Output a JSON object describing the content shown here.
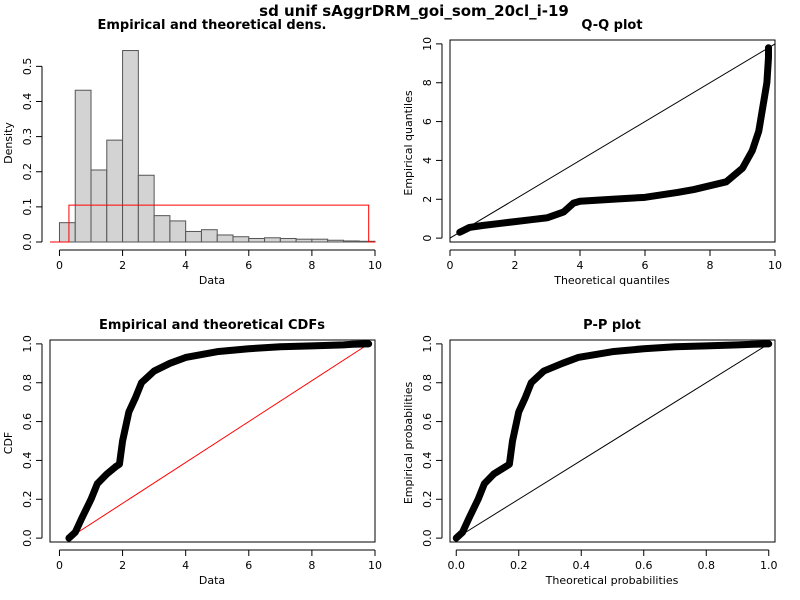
{
  "figure": {
    "title": "sd unif sAggrDRM_goi_som_20cl_i-19"
  },
  "chart_data": [
    {
      "id": "density",
      "type": "bar",
      "title": "Empirical and theoretical dens.",
      "xlabel": "Data",
      "ylabel": "Density",
      "xlim": [
        -0.3,
        10.0
      ],
      "ylim": [
        0,
        0.575
      ],
      "xticks": [
        "0",
        "2",
        "4",
        "6",
        "8",
        "10"
      ],
      "yticks": [
        "0.0",
        "0.1",
        "0.2",
        "0.3",
        "0.4",
        "0.5"
      ],
      "bin_edges": [
        0.0,
        0.5,
        1.0,
        1.5,
        2.0,
        2.5,
        3.0,
        3.5,
        4.0,
        4.5,
        5.0,
        5.5,
        6.0,
        6.5,
        7.0,
        7.5,
        8.0,
        8.5,
        9.0,
        9.5,
        10.0
      ],
      "values": [
        0.055,
        0.432,
        0.205,
        0.29,
        0.545,
        0.19,
        0.075,
        0.06,
        0.03,
        0.035,
        0.02,
        0.015,
        0.01,
        0.012,
        0.01,
        0.008,
        0.008,
        0.005,
        0.003,
        0.002
      ],
      "theoretical": {
        "distribution": "uniform",
        "min": 0.3,
        "max": 9.8,
        "density": 0.105
      },
      "colors": {
        "bars": "#d3d3d3",
        "theoretical": "#ff0000"
      }
    },
    {
      "id": "qq",
      "type": "scatter",
      "title": "Q-Q plot",
      "xlabel": "Theoretical quantiles",
      "ylabel": "Empirical quantiles",
      "xlim": [
        0,
        10
      ],
      "ylim": [
        -0.2,
        10.2
      ],
      "xticks": [
        "0",
        "2",
        "4",
        "6",
        "8",
        "10"
      ],
      "yticks": [
        "0",
        "2",
        "4",
        "6",
        "8",
        "10"
      ],
      "points": [
        [
          0.3,
          0.3
        ],
        [
          0.6,
          0.55
        ],
        [
          1.0,
          0.65
        ],
        [
          1.5,
          0.75
        ],
        [
          2.0,
          0.85
        ],
        [
          2.5,
          0.95
        ],
        [
          3.0,
          1.05
        ],
        [
          3.5,
          1.35
        ],
        [
          3.8,
          1.8
        ],
        [
          4.0,
          1.9
        ],
        [
          4.5,
          1.95
        ],
        [
          5.0,
          2.0
        ],
        [
          6.0,
          2.1
        ],
        [
          7.0,
          2.35
        ],
        [
          7.5,
          2.5
        ],
        [
          8.0,
          2.7
        ],
        [
          8.5,
          2.9
        ],
        [
          9.0,
          3.6
        ],
        [
          9.3,
          4.5
        ],
        [
          9.5,
          5.5
        ],
        [
          9.65,
          7.0
        ],
        [
          9.75,
          8.0
        ],
        [
          9.8,
          9.3
        ],
        [
          9.8,
          9.8
        ]
      ],
      "reference_line": {
        "from": [
          0,
          0
        ],
        "to": [
          10,
          10
        ]
      },
      "colors": {
        "points": "#000000",
        "line": "#000000"
      }
    },
    {
      "id": "cdf",
      "type": "line",
      "title": "Empirical and theoretical CDFs",
      "xlabel": "Data",
      "ylabel": "CDF",
      "xlim": [
        -0.3,
        10.0
      ],
      "ylim": [
        -0.02,
        1.02
      ],
      "xticks": [
        "0",
        "2",
        "4",
        "6",
        "8",
        "10"
      ],
      "yticks": [
        "0.0",
        "0.2",
        "0.4",
        "0.6",
        "0.8",
        "1.0"
      ],
      "empirical": [
        [
          0.3,
          0.0
        ],
        [
          0.5,
          0.03
        ],
        [
          0.7,
          0.1
        ],
        [
          1.0,
          0.2
        ],
        [
          1.2,
          0.28
        ],
        [
          1.5,
          0.33
        ],
        [
          1.8,
          0.37
        ],
        [
          1.9,
          0.38
        ],
        [
          2.0,
          0.5
        ],
        [
          2.2,
          0.65
        ],
        [
          2.4,
          0.72
        ],
        [
          2.6,
          0.8
        ],
        [
          3.0,
          0.86
        ],
        [
          3.5,
          0.9
        ],
        [
          4.0,
          0.93
        ],
        [
          5.0,
          0.96
        ],
        [
          6.0,
          0.975
        ],
        [
          7.0,
          0.985
        ],
        [
          8.0,
          0.99
        ],
        [
          9.0,
          0.995
        ],
        [
          9.3,
          0.998
        ],
        [
          9.8,
          1.0
        ]
      ],
      "theoretical": {
        "from": [
          0.3,
          0.0
        ],
        "to": [
          9.8,
          1.0
        ]
      },
      "colors": {
        "empirical": "#000000",
        "theoretical": "#ff0000"
      }
    },
    {
      "id": "pp",
      "type": "scatter",
      "title": "P-P plot",
      "xlabel": "Theoretical probabilities",
      "ylabel": "Empirical probabilities",
      "xlim": [
        -0.02,
        1.02
      ],
      "ylim": [
        -0.02,
        1.02
      ],
      "xticks": [
        "0.0",
        "0.2",
        "0.4",
        "0.6",
        "0.8",
        "1.0"
      ],
      "yticks": [
        "0.0",
        "0.2",
        "0.4",
        "0.6",
        "0.8",
        "1.0"
      ],
      "points": [
        [
          0.0,
          0.0
        ],
        [
          0.02,
          0.03
        ],
        [
          0.04,
          0.1
        ],
        [
          0.07,
          0.2
        ],
        [
          0.09,
          0.28
        ],
        [
          0.12,
          0.33
        ],
        [
          0.16,
          0.37
        ],
        [
          0.17,
          0.38
        ],
        [
          0.18,
          0.5
        ],
        [
          0.2,
          0.65
        ],
        [
          0.22,
          0.72
        ],
        [
          0.24,
          0.8
        ],
        [
          0.28,
          0.86
        ],
        [
          0.34,
          0.9
        ],
        [
          0.39,
          0.93
        ],
        [
          0.5,
          0.96
        ],
        [
          0.6,
          0.975
        ],
        [
          0.7,
          0.985
        ],
        [
          0.8,
          0.99
        ],
        [
          0.9,
          0.995
        ],
        [
          0.95,
          0.998
        ],
        [
          1.0,
          1.0
        ]
      ],
      "reference_line": {
        "from": [
          0,
          0
        ],
        "to": [
          1,
          1
        ]
      },
      "colors": {
        "points": "#000000",
        "line": "#000000"
      }
    }
  ]
}
